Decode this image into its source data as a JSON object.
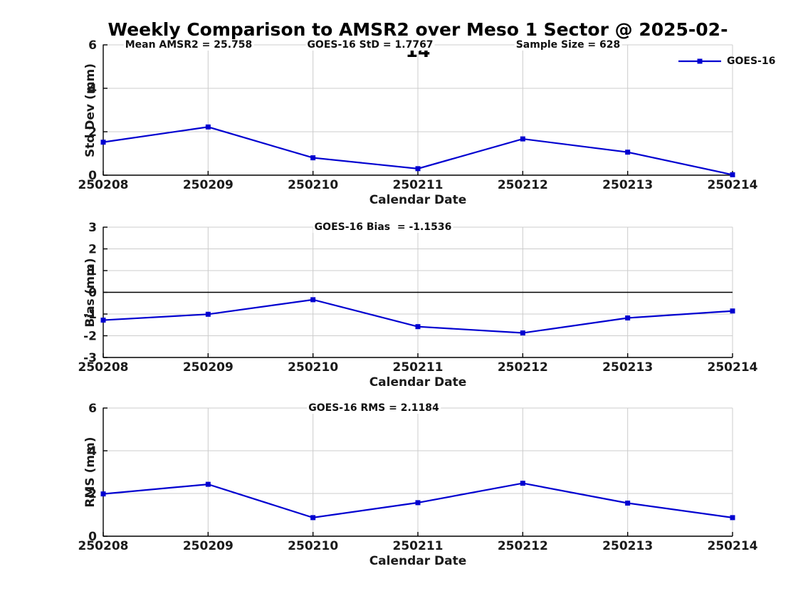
{
  "title": "Weekly Comparison to AMSR2 over Meso 1 Sector @ 2025-02-14",
  "x_axis_label": "Calendar Date",
  "colors": {
    "line": "#0000D0",
    "grid": "#CCCCCC",
    "axis": "#000000",
    "zero_line": "#000000",
    "text": "#1A1A1A",
    "background": "#FFFFFF"
  },
  "chart_data": {
    "type": "line",
    "categories": [
      "250208",
      "250209",
      "250210",
      "250211",
      "250212",
      "250213",
      "250214"
    ],
    "grid": true,
    "legend": {
      "label": "GOES-16",
      "position": "top-right",
      "marker": "square"
    },
    "charts": [
      {
        "name": "std-dev",
        "ylabel": "Std Dev (mm)",
        "xlabel": "Calendar Date",
        "ylim": [
          0,
          6
        ],
        "yticks": [
          0,
          2,
          4,
          6
        ],
        "series": [
          {
            "name": "GOES-16",
            "values": [
              1.52,
              2.22,
              0.8,
              0.3,
              1.67,
              1.06,
              0.02
            ]
          }
        ],
        "annotations": [
          {
            "text": "Mean AMSR2 = 25.758"
          },
          {
            "text": "GOES-16 StD = 1.7767"
          },
          {
            "text": "Sample Size = 628"
          }
        ]
      },
      {
        "name": "bias",
        "ylabel": "Bias (mm)",
        "xlabel": "Calendar Date",
        "ylim": [
          -3,
          3
        ],
        "yticks": [
          -3,
          -2,
          -1,
          0,
          1,
          2,
          3
        ],
        "zero_line": true,
        "series": [
          {
            "name": "GOES-16",
            "values": [
              -1.28,
              -1.01,
              -0.34,
              -1.58,
              -1.87,
              -1.18,
              -0.86
            ]
          }
        ],
        "annotations": [
          {
            "text": "GOES-16 Bias  = -1.1536"
          }
        ]
      },
      {
        "name": "rms",
        "ylabel": "RMS (mm)",
        "xlabel": "Calendar Date",
        "ylim": [
          0,
          6
        ],
        "yticks": [
          0,
          2,
          4,
          6
        ],
        "series": [
          {
            "name": "GOES-16",
            "values": [
              1.98,
              2.43,
              0.87,
              1.57,
              2.48,
              1.55,
              0.87
            ]
          }
        ],
        "annotations": [
          {
            "text": "GOES-16 RMS = 2.1184"
          }
        ]
      }
    ]
  }
}
